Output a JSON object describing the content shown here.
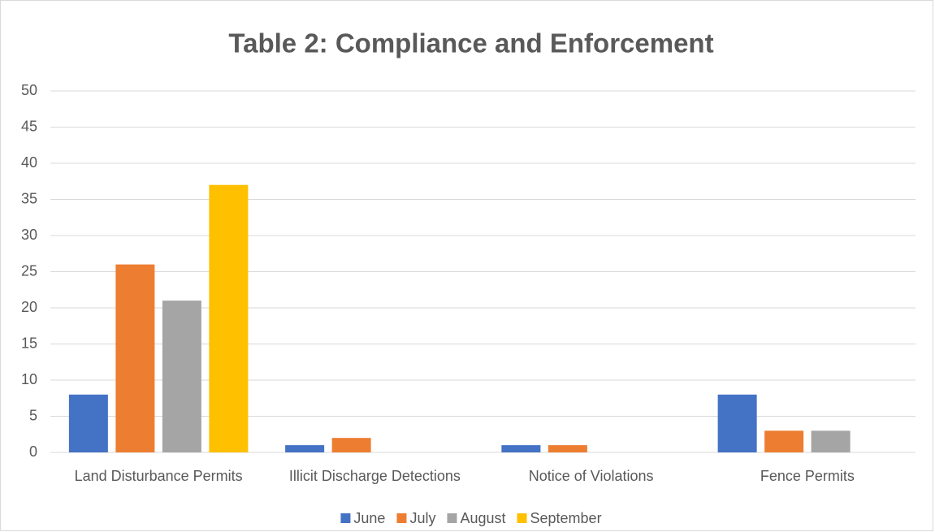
{
  "chart_data": {
    "type": "bar",
    "title": "Table 2: Compliance and Enforcement",
    "categories": [
      "Land Disturbance Permits",
      "Illicit Discharge Detections",
      "Notice of Violations",
      "Fence Permits"
    ],
    "series": [
      {
        "name": "June",
        "color": "#4472c4",
        "values": [
          8,
          1,
          1,
          8
        ]
      },
      {
        "name": "July",
        "color": "#ed7d31",
        "values": [
          26,
          2,
          1,
          3
        ]
      },
      {
        "name": "August",
        "color": "#a5a5a5",
        "values": [
          21,
          0,
          0,
          3
        ]
      },
      {
        "name": "September",
        "color": "#ffc000",
        "values": [
          37,
          0,
          0,
          0
        ]
      }
    ],
    "ylim": [
      0,
      50
    ],
    "yticks": [
      0,
      5,
      10,
      15,
      20,
      25,
      30,
      35,
      40,
      45,
      50
    ],
    "grid": true,
    "legend": "bottom"
  }
}
